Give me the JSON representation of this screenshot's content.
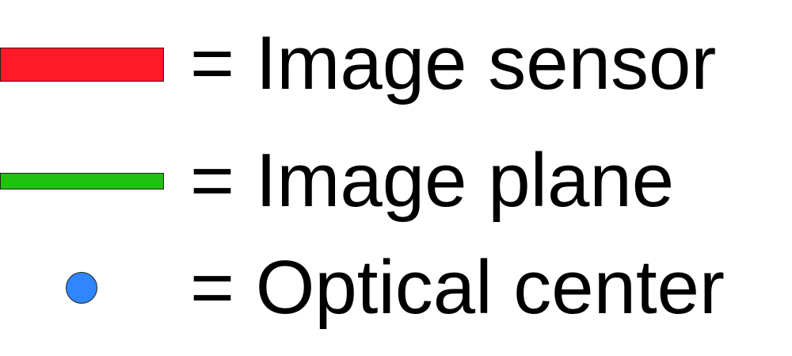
{
  "legend": {
    "items": [
      {
        "label": "= Image sensor",
        "symbol": "red-bar",
        "color": "#ff1a2a"
      },
      {
        "label": "= Image plane",
        "symbol": "green-line",
        "color": "#1fc20f"
      },
      {
        "label": "= Optical center",
        "symbol": "blue-circle",
        "color": "#2f86ff"
      }
    ]
  }
}
